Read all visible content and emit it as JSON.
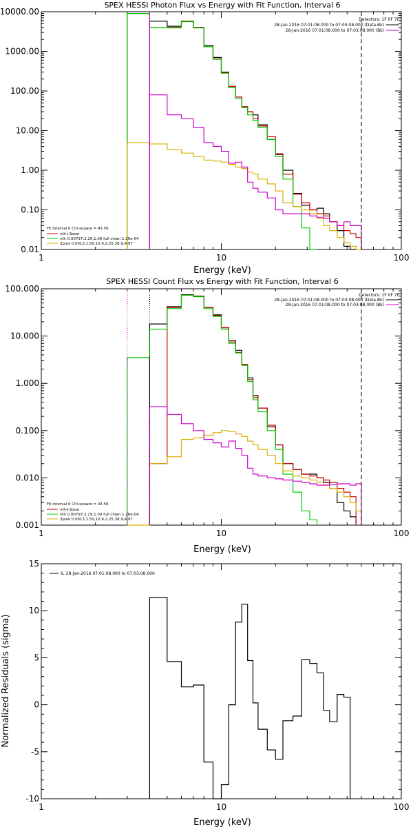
{
  "chart_data": [
    {
      "type": "line",
      "title": "SPEX HESSI Photon Flux vs Energy with Fit Function, Interval 6",
      "xlabel": "Energy (keV)",
      "ylabel": "",
      "xscale": "log",
      "yscale": "log",
      "xlim": [
        1,
        100
      ],
      "ylim": [
        0.01,
        10000
      ],
      "xticks": [
        "1",
        "10",
        "100"
      ],
      "yticks": [
        "0.01",
        "0.10",
        "1.00",
        "10.00",
        "100.00",
        "1000.00",
        "10000.00"
      ],
      "detectors": "Detectors: 1F 0F 7F",
      "top_legend": [
        {
          "text": "28-Jan-2016 07:01:08.000 to 07:03:08.000 (Data-Bk)",
          "color": "#000000"
        },
        {
          "text": "28-Jan-2016 07:01:08.000 to 07:03:08.000 (Bk)",
          "color": "#cc00cc"
        }
      ],
      "fit_header": "Fit Interval 6   Chi-square = 43.56",
      "fit_legend": [
        {
          "text": "vth+3pow",
          "color": "#cc0000"
        },
        {
          "text": "vth 0.00797,2.29,1.00  full chian 1.26e-04",
          "color": "#00cc00"
        },
        {
          "text": "3pow 0.0913,1.50,10.9,2.25,38.9,4.97",
          "color": "#d9b000"
        }
      ],
      "vlines": [
        {
          "x": 4.0,
          "style": "solid",
          "color": "#cc00cc"
        },
        {
          "x": 60,
          "style": "dashed",
          "color": "#000000"
        }
      ],
      "edges": [
        3.0,
        4.0,
        5.0,
        6.0,
        7.0,
        8.0,
        9.0,
        10.0,
        11.0,
        12.0,
        13.0,
        14.0,
        15.0,
        16.0,
        18.0,
        20.0,
        22.0,
        25.0,
        28.0,
        31.0,
        34.0,
        37.0,
        40.0,
        44.0,
        48.0,
        52.0,
        56.0,
        60.0
      ],
      "series": [
        {
          "name": "Data-Bk",
          "color": "#000000",
          "values": [
            null,
            5800,
            4300,
            5800,
            4000,
            1400,
            700,
            300,
            120,
            70,
            40,
            30,
            25,
            14,
            6,
            2.5,
            1.0,
            0.26,
            0.13,
            0.1,
            0.11,
            0.08,
            0.05,
            0.03,
            0.012,
            0.009,
            null
          ]
        },
        {
          "name": "vth+3pow",
          "color": "#cc0000",
          "values": [
            9000,
            4000,
            4000,
            5700,
            4000,
            1300,
            650,
            290,
            130,
            70,
            40,
            30,
            20,
            13,
            7,
            2.6,
            0.8,
            0.25,
            0.15,
            0.1,
            0.08,
            0.07,
            0.05,
            0.04,
            0.03,
            0.025,
            0.02
          ]
        },
        {
          "name": "vth",
          "color": "#00cc00",
          "values": [
            9000,
            4000,
            3900,
            5600,
            3900,
            1300,
            630,
            280,
            120,
            65,
            38,
            25,
            18,
            12,
            6,
            2.2,
            0.6,
            0.12,
            0.035,
            0.005,
            null,
            null,
            null,
            null,
            null,
            null,
            null
          ]
        },
        {
          "name": "3pow",
          "color": "#d9b000",
          "values": [
            5,
            4.6,
            3.3,
            2.7,
            2.2,
            1.8,
            1.7,
            1.6,
            1.4,
            1.2,
            1.1,
            0.9,
            0.8,
            0.6,
            0.45,
            0.3,
            0.15,
            0.12,
            0.1,
            0.08,
            0.06,
            0.04,
            0.03,
            0.02,
            0.015,
            0.012,
            0.009
          ]
        },
        {
          "name": "Bk",
          "color": "#cc00cc",
          "values": [
            null,
            80,
            25,
            20,
            12,
            5,
            4,
            3,
            1.5,
            1.6,
            1.2,
            0.5,
            0.35,
            0.28,
            0.2,
            0.1,
            0.08,
            0.08,
            0.08,
            0.07,
            0.065,
            0.06,
            0.05,
            0.04,
            0.05,
            0.04,
            0.04
          ]
        }
      ]
    },
    {
      "type": "line",
      "title": "SPEX HESSI Count Flux vs Energy with Fit Function, Interval 6",
      "xlabel": "Energy (keV)",
      "ylabel": "",
      "xscale": "log",
      "yscale": "log",
      "xlim": [
        1,
        100
      ],
      "ylim": [
        0.001,
        100
      ],
      "xticks": [
        "1",
        "10",
        "100"
      ],
      "yticks": [
        "0.001",
        "0.010",
        "0.100",
        "1.000",
        "10.000",
        "100.000"
      ],
      "detectors": "Detectors: 1F 0F 7F",
      "top_legend": [
        {
          "text": "28-Jan-2016 07:01:08.000 to 07:03:08.000 (Data-Bk)",
          "color": "#000000"
        },
        {
          "text": "28-Jan-2016 07:01:08.000 to 07:03:08.000 (Bk)",
          "color": "#cc00cc"
        }
      ],
      "fit_header": "Fit Interval 6   Chi-square = 43.56",
      "fit_legend": [
        {
          "text": "vth+3pow",
          "color": "#cc0000"
        },
        {
          "text": "vth 0.00797,2.29,1.00  full chian 1.26e-04",
          "color": "#00cc00"
        },
        {
          "text": "3pow 0.0913,1.50,10.9,2.25,38.9,4.97",
          "color": "#d9b000"
        }
      ],
      "vlines": [
        {
          "x": 3.0,
          "style": "dotted",
          "color": "#cc00cc"
        },
        {
          "x": 4.0,
          "style": "dotted",
          "color": "#000000"
        },
        {
          "x": 60,
          "style": "dashed",
          "color": "#000000"
        }
      ],
      "edges": [
        3.0,
        4.0,
        5.0,
        6.0,
        7.0,
        8.0,
        9.0,
        10.0,
        11.0,
        12.0,
        13.0,
        14.0,
        15.0,
        16.0,
        18.0,
        20.0,
        22.0,
        25.0,
        28.0,
        31.0,
        34.0,
        37.0,
        40.0,
        44.0,
        48.0,
        52.0,
        56.0,
        60.0
      ],
      "series": [
        {
          "name": "Data-Bk",
          "color": "#000000",
          "values": [
            null,
            18,
            42,
            75,
            70,
            40,
            28,
            15,
            8,
            5,
            2.5,
            1.3,
            0.55,
            0.3,
            0.12,
            0.05,
            0.02,
            0.015,
            0.012,
            0.012,
            0.01,
            0.008,
            0.006,
            0.003,
            0.002,
            0.0015,
            null
          ]
        },
        {
          "name": "vth+3pow",
          "color": "#cc0000",
          "values": [
            null,
            0.02,
            40,
            73,
            69,
            40,
            27,
            15,
            7.5,
            4.5,
            2.5,
            1.2,
            0.5,
            0.3,
            0.13,
            0.05,
            0.02,
            0.015,
            0.012,
            0.011,
            0.01,
            0.009,
            0.008,
            0.006,
            0.005,
            0.004,
            null
          ]
        },
        {
          "name": "vth",
          "color": "#00cc00",
          "values": [
            3.5,
            14,
            38,
            73,
            68,
            38,
            26,
            14,
            7,
            4.4,
            2.4,
            1.1,
            0.45,
            0.25,
            0.1,
            0.04,
            0.012,
            0.005,
            0.002,
            0.0013,
            null,
            null,
            null,
            null,
            null,
            null,
            null
          ]
        },
        {
          "name": "3pow",
          "color": "#d9b000",
          "values": [
            0.0009,
            0.02,
            0.028,
            0.065,
            0.07,
            0.08,
            0.09,
            0.1,
            0.095,
            0.085,
            0.075,
            0.06,
            0.05,
            0.04,
            0.03,
            0.02,
            0.014,
            0.011,
            0.01,
            0.009,
            0.008,
            0.007,
            0.006,
            0.005,
            0.004,
            0.003,
            0.002
          ]
        },
        {
          "name": "Bk",
          "color": "#cc00cc",
          "values": [
            null,
            0.32,
            0.22,
            0.14,
            0.1,
            0.065,
            0.055,
            0.045,
            0.06,
            0.042,
            0.03,
            0.016,
            0.012,
            0.011,
            0.01,
            0.0095,
            0.009,
            0.0085,
            0.008,
            0.0075,
            0.007,
            0.007,
            0.0072,
            0.0075,
            0.0075,
            0.007,
            0.0075
          ]
        }
      ]
    },
    {
      "type": "line",
      "title": "",
      "xlabel": "Energy (keV)",
      "ylabel": "Normalized Residuals (sigma)",
      "xscale": "log",
      "yscale": "linear",
      "xlim": [
        1,
        100
      ],
      "ylim": [
        -10,
        15
      ],
      "xticks": [
        "1",
        "10",
        "100"
      ],
      "yticks": [
        "-10",
        "-5",
        "0",
        "5",
        "10",
        "15"
      ],
      "legend": [
        {
          "text": "6, 28-Jan-2016 07:01:08.000 to 07:03:08.000",
          "color": "#000000"
        }
      ],
      "edges": [
        4.0,
        5.0,
        6.0,
        7.0,
        8.0,
        9.0,
        10.0,
        11.0,
        12.0,
        13.0,
        14.0,
        15.0,
        16.0,
        18.0,
        20.0,
        22.0,
        25.0,
        28.0,
        31.0,
        34.0,
        37.0,
        40.0,
        44.0,
        48.0,
        52.0,
        56.0,
        60.0
      ],
      "series": [
        {
          "name": "6, 28-Jan-2016 07:01:08.000 to 07:03:08.000",
          "color": "#000000",
          "values": [
            11.4,
            4.6,
            1.9,
            2.1,
            -6.1,
            -12.0,
            -8.5,
            0.0,
            8.8,
            10.7,
            4.7,
            0.2,
            -2.6,
            -4.8,
            -5.8,
            -1.7,
            -1.2,
            4.8,
            4.4,
            3.4,
            -0.6,
            -1.8,
            1.1,
            0.8,
            null,
            null
          ]
        }
      ]
    }
  ]
}
